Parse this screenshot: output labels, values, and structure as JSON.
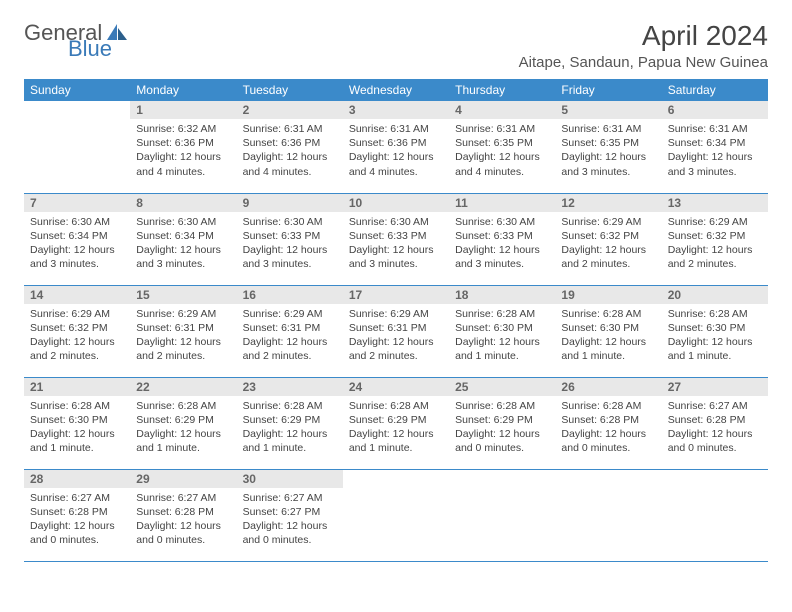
{
  "logo": {
    "general": "General",
    "blue": "Blue"
  },
  "title": "April 2024",
  "location": "Aitape, Sandaun, Papua New Guinea",
  "colors": {
    "header_bg": "#3b8aca",
    "header_text": "#ffffff",
    "daynum_bg": "#e8e8e8",
    "daynum_text": "#666666",
    "body_text": "#444444",
    "row_border": "#3b8aca",
    "logo_blue": "#3a7ab8",
    "logo_gray": "#555555"
  },
  "day_headers": [
    "Sunday",
    "Monday",
    "Tuesday",
    "Wednesday",
    "Thursday",
    "Friday",
    "Saturday"
  ],
  "weeks": [
    [
      {
        "n": "",
        "sr": "",
        "ss": "",
        "dl": ""
      },
      {
        "n": "1",
        "sr": "6:32 AM",
        "ss": "6:36 PM",
        "dl": "12 hours and 4 minutes."
      },
      {
        "n": "2",
        "sr": "6:31 AM",
        "ss": "6:36 PM",
        "dl": "12 hours and 4 minutes."
      },
      {
        "n": "3",
        "sr": "6:31 AM",
        "ss": "6:36 PM",
        "dl": "12 hours and 4 minutes."
      },
      {
        "n": "4",
        "sr": "6:31 AM",
        "ss": "6:35 PM",
        "dl": "12 hours and 4 minutes."
      },
      {
        "n": "5",
        "sr": "6:31 AM",
        "ss": "6:35 PM",
        "dl": "12 hours and 3 minutes."
      },
      {
        "n": "6",
        "sr": "6:31 AM",
        "ss": "6:34 PM",
        "dl": "12 hours and 3 minutes."
      }
    ],
    [
      {
        "n": "7",
        "sr": "6:30 AM",
        "ss": "6:34 PM",
        "dl": "12 hours and 3 minutes."
      },
      {
        "n": "8",
        "sr": "6:30 AM",
        "ss": "6:34 PM",
        "dl": "12 hours and 3 minutes."
      },
      {
        "n": "9",
        "sr": "6:30 AM",
        "ss": "6:33 PM",
        "dl": "12 hours and 3 minutes."
      },
      {
        "n": "10",
        "sr": "6:30 AM",
        "ss": "6:33 PM",
        "dl": "12 hours and 3 minutes."
      },
      {
        "n": "11",
        "sr": "6:30 AM",
        "ss": "6:33 PM",
        "dl": "12 hours and 3 minutes."
      },
      {
        "n": "12",
        "sr": "6:29 AM",
        "ss": "6:32 PM",
        "dl": "12 hours and 2 minutes."
      },
      {
        "n": "13",
        "sr": "6:29 AM",
        "ss": "6:32 PM",
        "dl": "12 hours and 2 minutes."
      }
    ],
    [
      {
        "n": "14",
        "sr": "6:29 AM",
        "ss": "6:32 PM",
        "dl": "12 hours and 2 minutes."
      },
      {
        "n": "15",
        "sr": "6:29 AM",
        "ss": "6:31 PM",
        "dl": "12 hours and 2 minutes."
      },
      {
        "n": "16",
        "sr": "6:29 AM",
        "ss": "6:31 PM",
        "dl": "12 hours and 2 minutes."
      },
      {
        "n": "17",
        "sr": "6:29 AM",
        "ss": "6:31 PM",
        "dl": "12 hours and 2 minutes."
      },
      {
        "n": "18",
        "sr": "6:28 AM",
        "ss": "6:30 PM",
        "dl": "12 hours and 1 minute."
      },
      {
        "n": "19",
        "sr": "6:28 AM",
        "ss": "6:30 PM",
        "dl": "12 hours and 1 minute."
      },
      {
        "n": "20",
        "sr": "6:28 AM",
        "ss": "6:30 PM",
        "dl": "12 hours and 1 minute."
      }
    ],
    [
      {
        "n": "21",
        "sr": "6:28 AM",
        "ss": "6:30 PM",
        "dl": "12 hours and 1 minute."
      },
      {
        "n": "22",
        "sr": "6:28 AM",
        "ss": "6:29 PM",
        "dl": "12 hours and 1 minute."
      },
      {
        "n": "23",
        "sr": "6:28 AM",
        "ss": "6:29 PM",
        "dl": "12 hours and 1 minute."
      },
      {
        "n": "24",
        "sr": "6:28 AM",
        "ss": "6:29 PM",
        "dl": "12 hours and 1 minute."
      },
      {
        "n": "25",
        "sr": "6:28 AM",
        "ss": "6:29 PM",
        "dl": "12 hours and 0 minutes."
      },
      {
        "n": "26",
        "sr": "6:28 AM",
        "ss": "6:28 PM",
        "dl": "12 hours and 0 minutes."
      },
      {
        "n": "27",
        "sr": "6:27 AM",
        "ss": "6:28 PM",
        "dl": "12 hours and 0 minutes."
      }
    ],
    [
      {
        "n": "28",
        "sr": "6:27 AM",
        "ss": "6:28 PM",
        "dl": "12 hours and 0 minutes."
      },
      {
        "n": "29",
        "sr": "6:27 AM",
        "ss": "6:28 PM",
        "dl": "12 hours and 0 minutes."
      },
      {
        "n": "30",
        "sr": "6:27 AM",
        "ss": "6:27 PM",
        "dl": "12 hours and 0 minutes."
      },
      {
        "n": "",
        "sr": "",
        "ss": "",
        "dl": ""
      },
      {
        "n": "",
        "sr": "",
        "ss": "",
        "dl": ""
      },
      {
        "n": "",
        "sr": "",
        "ss": "",
        "dl": ""
      },
      {
        "n": "",
        "sr": "",
        "ss": "",
        "dl": ""
      }
    ]
  ],
  "labels": {
    "sunrise": "Sunrise:",
    "sunset": "Sunset:",
    "daylight": "Daylight:"
  }
}
